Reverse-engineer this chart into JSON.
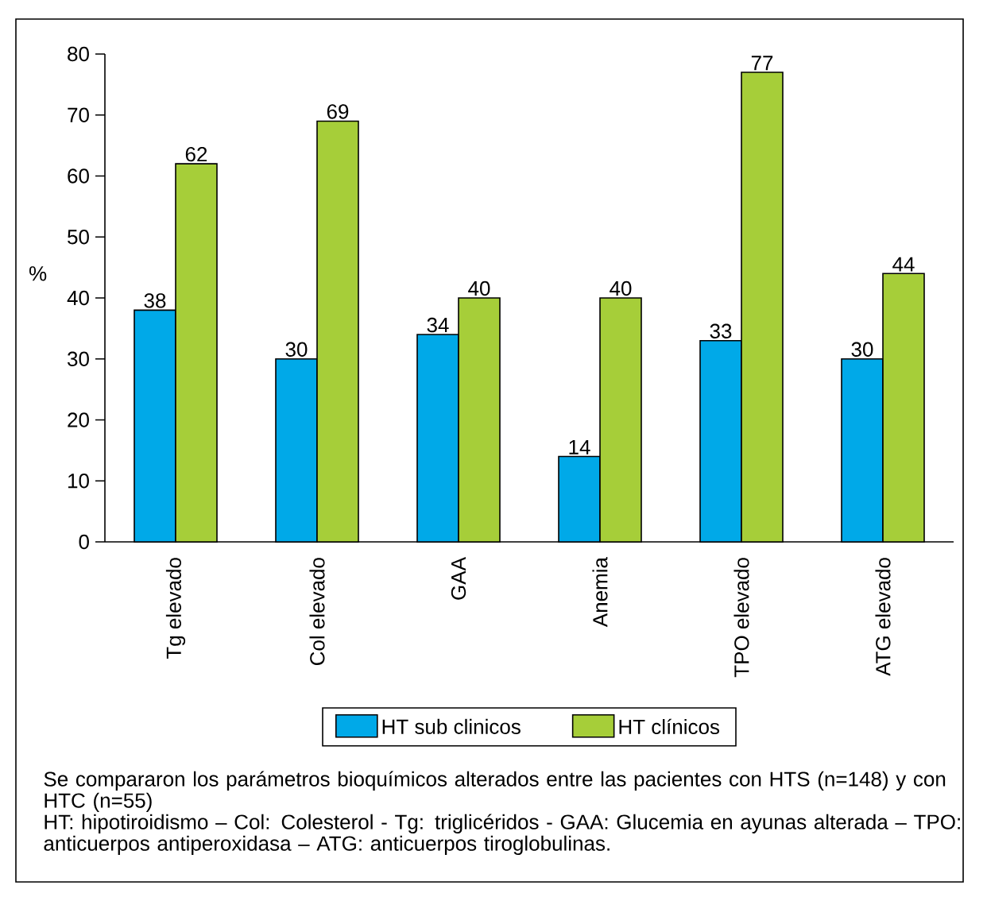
{
  "chart_data": {
    "type": "bar",
    "ylabel": "%",
    "categories": [
      "Tg elevado",
      "Col elevado",
      "GAA",
      "Anemia",
      "TPO elevado",
      "ATG elevado"
    ],
    "series": [
      {
        "name": "HT sub clinicos",
        "color": "#00a9e8",
        "values": [
          38,
          30,
          34,
          14,
          33,
          30
        ]
      },
      {
        "name": "HT clínicos",
        "color": "#a6ce39",
        "values": [
          62,
          69,
          40,
          40,
          77,
          44
        ]
      }
    ],
    "ylim": [
      0,
      80
    ],
    "yticks": [
      0,
      10,
      20,
      30,
      40,
      50,
      60,
      70,
      80
    ],
    "data_labels": true,
    "legend": "bottom",
    "grid": false,
    "annotations": [
      "Se compararon los parámetros bioquímicos alterados entre las pacientes con HTS (n=148) y con HTC (n=55)",
      "HT: hipotiroidismo – Col: Colesterol -  Tg: triglicéridos -  GAA: Glucemia en ayunas alterada – TPO: anticuerpos antiperoxidasa – ATG: anticuerpos tiroglobulinas."
    ]
  }
}
